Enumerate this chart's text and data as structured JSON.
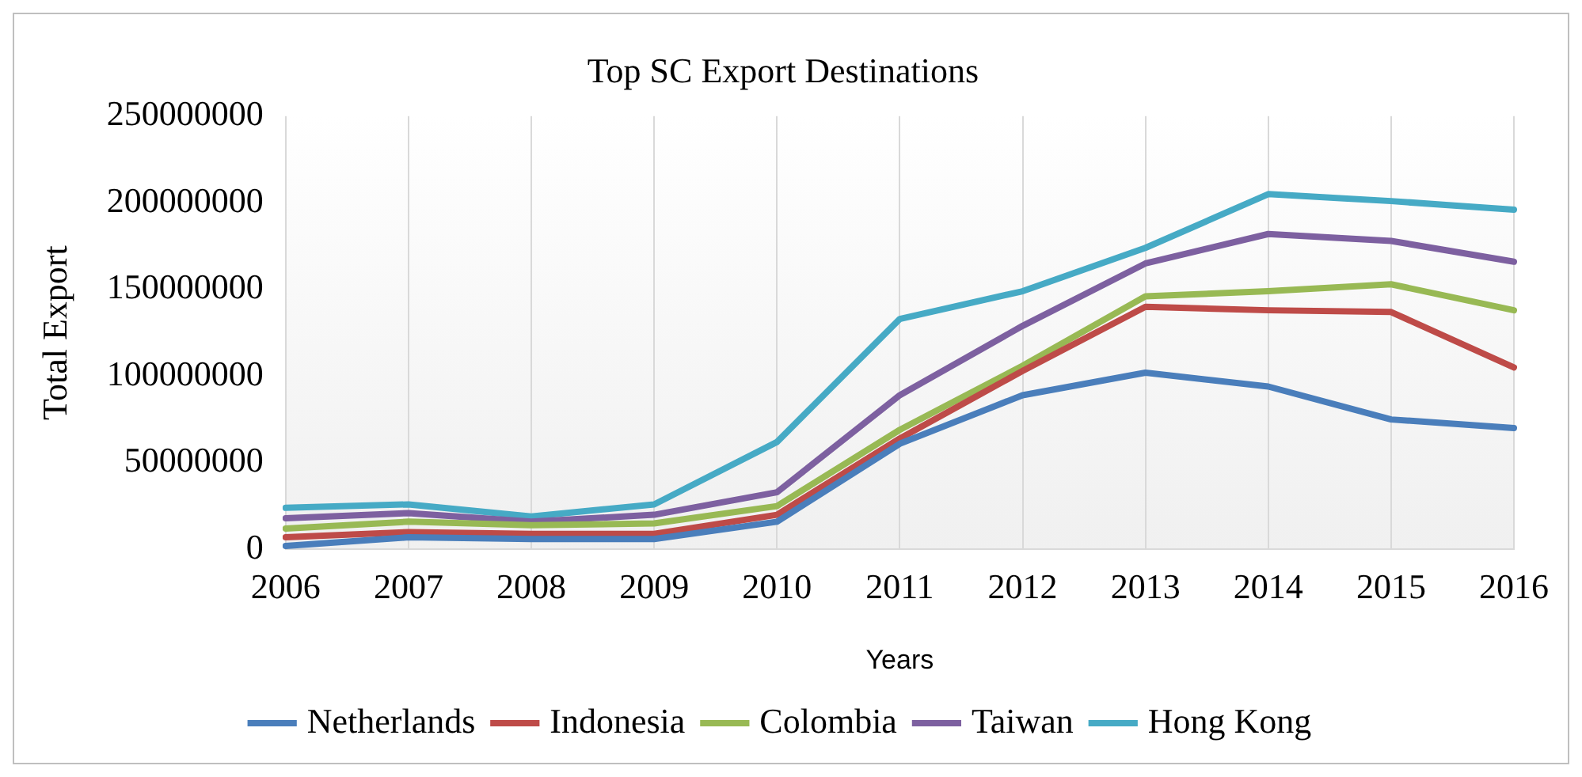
{
  "chart_data": {
    "type": "line",
    "title": "Top SC Export Destinations",
    "xlabel": "Years",
    "ylabel": "Total Export",
    "categories": [
      "2006",
      "2007",
      "2008",
      "2009",
      "2010",
      "2011",
      "2012",
      "2013",
      "2014",
      "2015",
      "2016"
    ],
    "series": [
      {
        "name": "Netherlands",
        "color": "#4a7ebb",
        "values": [
          2000000,
          7000000,
          6000000,
          6000000,
          16000000,
          61000000,
          89000000,
          102000000,
          94000000,
          75000000,
          70000000
        ]
      },
      {
        "name": "Indonesia",
        "color": "#be4b48",
        "values": [
          7000000,
          10000000,
          9000000,
          9000000,
          20000000,
          64000000,
          103000000,
          140000000,
          138000000,
          137000000,
          105000000
        ]
      },
      {
        "name": "Colombia",
        "color": "#98b954",
        "values": [
          12000000,
          16000000,
          14000000,
          15000000,
          25000000,
          69000000,
          106000000,
          146000000,
          149000000,
          153000000,
          138000000
        ]
      },
      {
        "name": "Taiwan",
        "color": "#7d60a0",
        "values": [
          18000000,
          21000000,
          16000000,
          20000000,
          33000000,
          89000000,
          129000000,
          165000000,
          182000000,
          178000000,
          166000000
        ]
      },
      {
        "name": "Hong Kong",
        "color": "#46aac5",
        "values": [
          24000000,
          26000000,
          19000000,
          26000000,
          62000000,
          133000000,
          149000000,
          174000000,
          205000000,
          201000000,
          196000000
        ]
      }
    ],
    "ylim": [
      0,
      250000000
    ],
    "yticks": [
      0,
      50000000,
      100000000,
      150000000,
      200000000,
      250000000
    ],
    "grid": "x",
    "legend": "bottom",
    "marker": "none",
    "line_style": "solid"
  }
}
